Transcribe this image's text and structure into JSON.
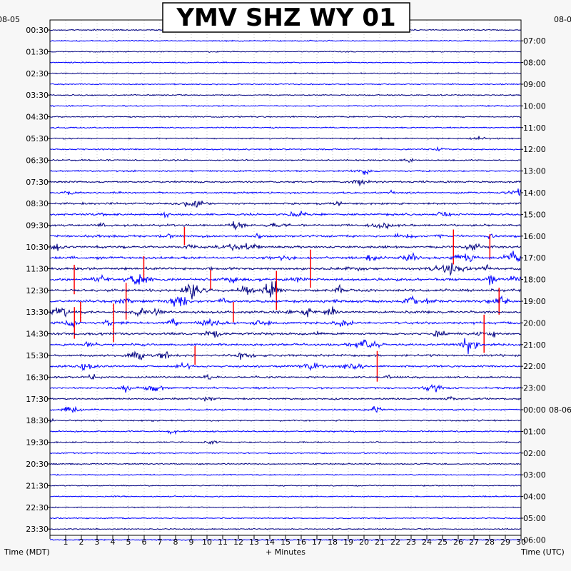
{
  "chart_data": {
    "type": "helicorder",
    "title": "YMV SHZ WY 01",
    "left_date_label": "08-05",
    "right_date_label": "08-06",
    "right_top_date_label": "08-0",
    "xlabel": "+ Minutes",
    "left_axis_label": "Time (MDT)",
    "right_axis_label": "Time (UTC)",
    "x_ticks": [
      1,
      2,
      3,
      4,
      5,
      6,
      7,
      8,
      9,
      10,
      11,
      12,
      13,
      14,
      15,
      16,
      17,
      18,
      19,
      20,
      21,
      22,
      23,
      24,
      25,
      26,
      27,
      28,
      29,
      30
    ],
    "left_time_labels": [
      "00:30",
      "01:30",
      "02:30",
      "03:30",
      "04:30",
      "05:30",
      "06:30",
      "07:30",
      "08:30",
      "09:30",
      "10:30",
      "11:30",
      "12:30",
      "13:30",
      "14:30",
      "15:30",
      "16:30",
      "17:30",
      "18:30",
      "19:30",
      "20:30",
      "21:30",
      "22:30",
      "23:30"
    ],
    "right_time_labels": [
      "07:00",
      "08:00",
      "09:00",
      "10:00",
      "11:00",
      "12:00",
      "13:00",
      "14:00",
      "15:00",
      "16:00",
      "17:00",
      "18:00",
      "19:00",
      "20:00",
      "21:00",
      "22:00",
      "23:00",
      "00:00",
      "01:00",
      "02:00",
      "03:00",
      "04:00",
      "05:00",
      "06:00"
    ],
    "right_date_label_row": "00:00",
    "trace_count": 48,
    "minutes_per_trace": 30,
    "trace_colors": [
      "#000080",
      "#0000ff",
      "#ff0000"
    ],
    "grid": true
  }
}
